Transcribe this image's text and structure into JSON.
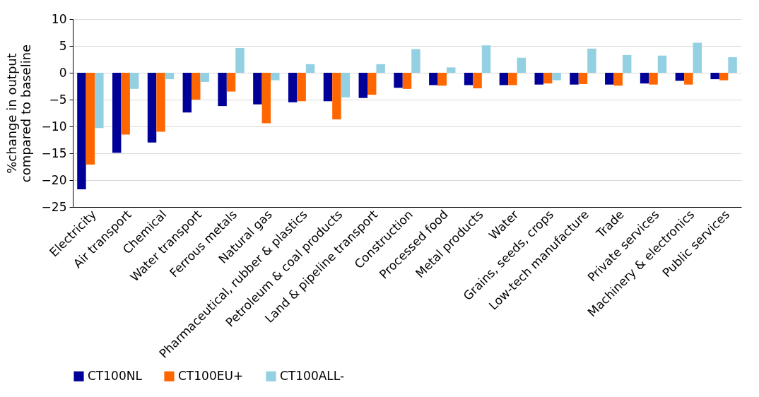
{
  "chart_data": {
    "type": "bar",
    "ylabel": "%change in output\ncompared to baseline",
    "categories": [
      "Electricity",
      "Air transport",
      "Chemical",
      "Water transport",
      "Ferrous metals",
      "Natural gas",
      "Pharmaceutical, rubber & plastics",
      "Petroleum & coal products",
      "Land & pipeline transport",
      "Construction",
      "Processed food",
      "Metal products",
      "Water",
      "Grains, seeds, crops",
      "Low-tech manufacture",
      "Trade",
      "Private services",
      "Machinery & electronics",
      "Public services"
    ],
    "series": [
      {
        "name": "CT100NL",
        "color": "#000099",
        "values": [
          -21.7,
          -14.9,
          -13.0,
          -7.4,
          -6.2,
          -5.9,
          -5.5,
          -5.3,
          -4.7,
          -2.8,
          -2.3,
          -2.3,
          -2.3,
          -2.2,
          -2.2,
          -2.2,
          -2.0,
          -1.5,
          -1.2
        ]
      },
      {
        "name": "CT100EU+",
        "color": "#ff6600",
        "values": [
          -17.1,
          -11.5,
          -11.0,
          -5.0,
          -3.5,
          -9.4,
          -5.3,
          -8.7,
          -4.1,
          -3.0,
          -2.4,
          -2.9,
          -2.3,
          -2.0,
          -2.1,
          -2.4,
          -2.2,
          -2.2,
          -1.4
        ]
      },
      {
        "name": "CT100ALL-",
        "color": "#92d0e2",
        "values": [
          -10.3,
          -3.0,
          -1.2,
          -1.7,
          4.6,
          -1.4,
          1.6,
          -4.6,
          1.6,
          4.4,
          1.0,
          5.1,
          2.8,
          -1.4,
          4.5,
          3.3,
          3.2,
          5.6,
          2.9
        ]
      }
    ],
    "ylim": [
      -25,
      10
    ],
    "yticks": [
      -25,
      -20,
      -15,
      -10,
      -5,
      0,
      5,
      10
    ],
    "grid": "y",
    "legend": "bottom"
  }
}
